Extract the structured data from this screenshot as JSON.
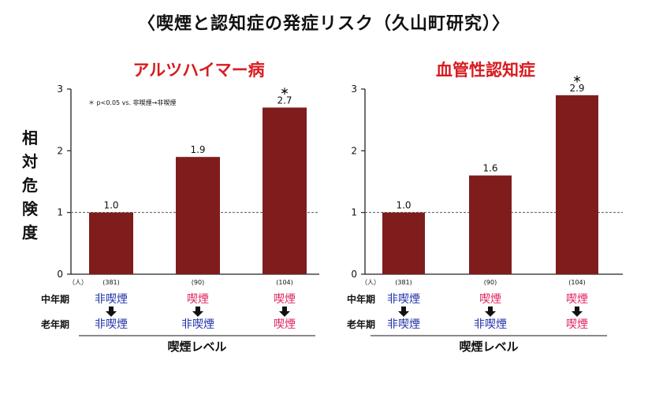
{
  "title": "〈喫煙と認知症の発症リスク（久山町研究）〉",
  "ylabel": "相対危険度",
  "stage_labels": {
    "mid": "中年期",
    "late": "老年期"
  },
  "xlabel": "喫煙レベル",
  "colors": {
    "bar": "#7f1d1d",
    "subtitle": "#d81b20",
    "nonsmoker": "#2233aa",
    "smoker": "#e0245e",
    "ref_line": "#555555"
  },
  "chart_data": [
    {
      "type": "bar",
      "title": "アルツハイマー病",
      "note": "＊ p<0.05 vs. 非喫煙→非喫煙",
      "n_unit": "（人）",
      "categories": [
        {
          "n": "(381)",
          "mid": "非喫煙",
          "mid_status": "nonsmoker",
          "late": "非喫煙",
          "late_status": "nonsmoker"
        },
        {
          "n": "(90)",
          "mid": "喫煙",
          "mid_status": "smoker",
          "late": "非喫煙",
          "late_status": "nonsmoker"
        },
        {
          "n": "(104)",
          "mid": "喫煙",
          "mid_status": "smoker",
          "late": "喫煙",
          "late_status": "smoker"
        }
      ],
      "values": [
        1.0,
        1.9,
        2.7
      ],
      "value_labels": [
        "1.0",
        "1.9",
        "2.7"
      ],
      "significant": [
        false,
        false,
        true
      ],
      "sig_marker": "＊",
      "ylim": [
        0,
        3
      ],
      "yticks": [
        "0",
        "1",
        "2",
        "3"
      ],
      "reference_line": 1
    },
    {
      "type": "bar",
      "title": "血管性認知症",
      "note": "",
      "n_unit": "（人）",
      "categories": [
        {
          "n": "(381)",
          "mid": "非喫煙",
          "mid_status": "nonsmoker",
          "late": "非喫煙",
          "late_status": "nonsmoker"
        },
        {
          "n": "(90)",
          "mid": "喫煙",
          "mid_status": "smoker",
          "late": "非喫煙",
          "late_status": "nonsmoker"
        },
        {
          "n": "(104)",
          "mid": "喫煙",
          "mid_status": "smoker",
          "late": "喫煙",
          "late_status": "smoker"
        }
      ],
      "values": [
        1.0,
        1.6,
        2.9
      ],
      "value_labels": [
        "1.0",
        "1.6",
        "2.9"
      ],
      "significant": [
        false,
        false,
        true
      ],
      "sig_marker": "＊",
      "ylim": [
        0,
        3
      ],
      "yticks": [
        "0",
        "1",
        "2",
        "3"
      ],
      "reference_line": 1
    }
  ]
}
